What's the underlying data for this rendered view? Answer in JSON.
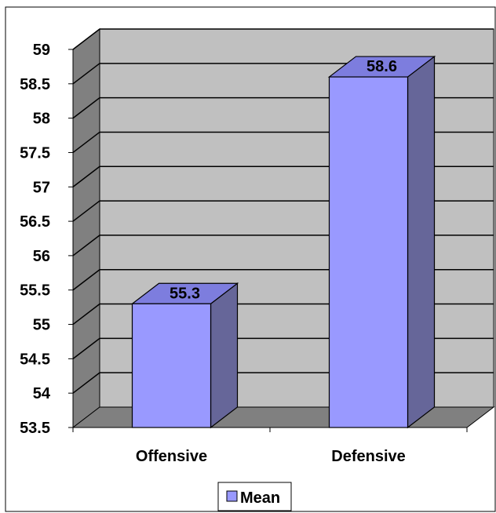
{
  "chart_data": {
    "type": "bar",
    "categories": [
      "Offensive",
      "Defensive"
    ],
    "series": [
      {
        "name": "Mean",
        "values": [
          55.3,
          58.6
        ]
      }
    ],
    "data_labels": [
      "55.3",
      "58.6"
    ],
    "ylim": [
      53.5,
      59
    ],
    "yticks": [
      "53.5",
      "54",
      "54.5",
      "55",
      "55.5",
      "56",
      "56.5",
      "57",
      "57.5",
      "58",
      "58.5",
      "59"
    ],
    "grid": true,
    "legend": "bottom",
    "colors": {
      "bar_front": "#9999ff",
      "bar_side": "#666699",
      "bar_top": "#7d7dde",
      "back_wall": "#c0c0c0",
      "side_wall": "#808080",
      "floor": "#808080"
    }
  }
}
